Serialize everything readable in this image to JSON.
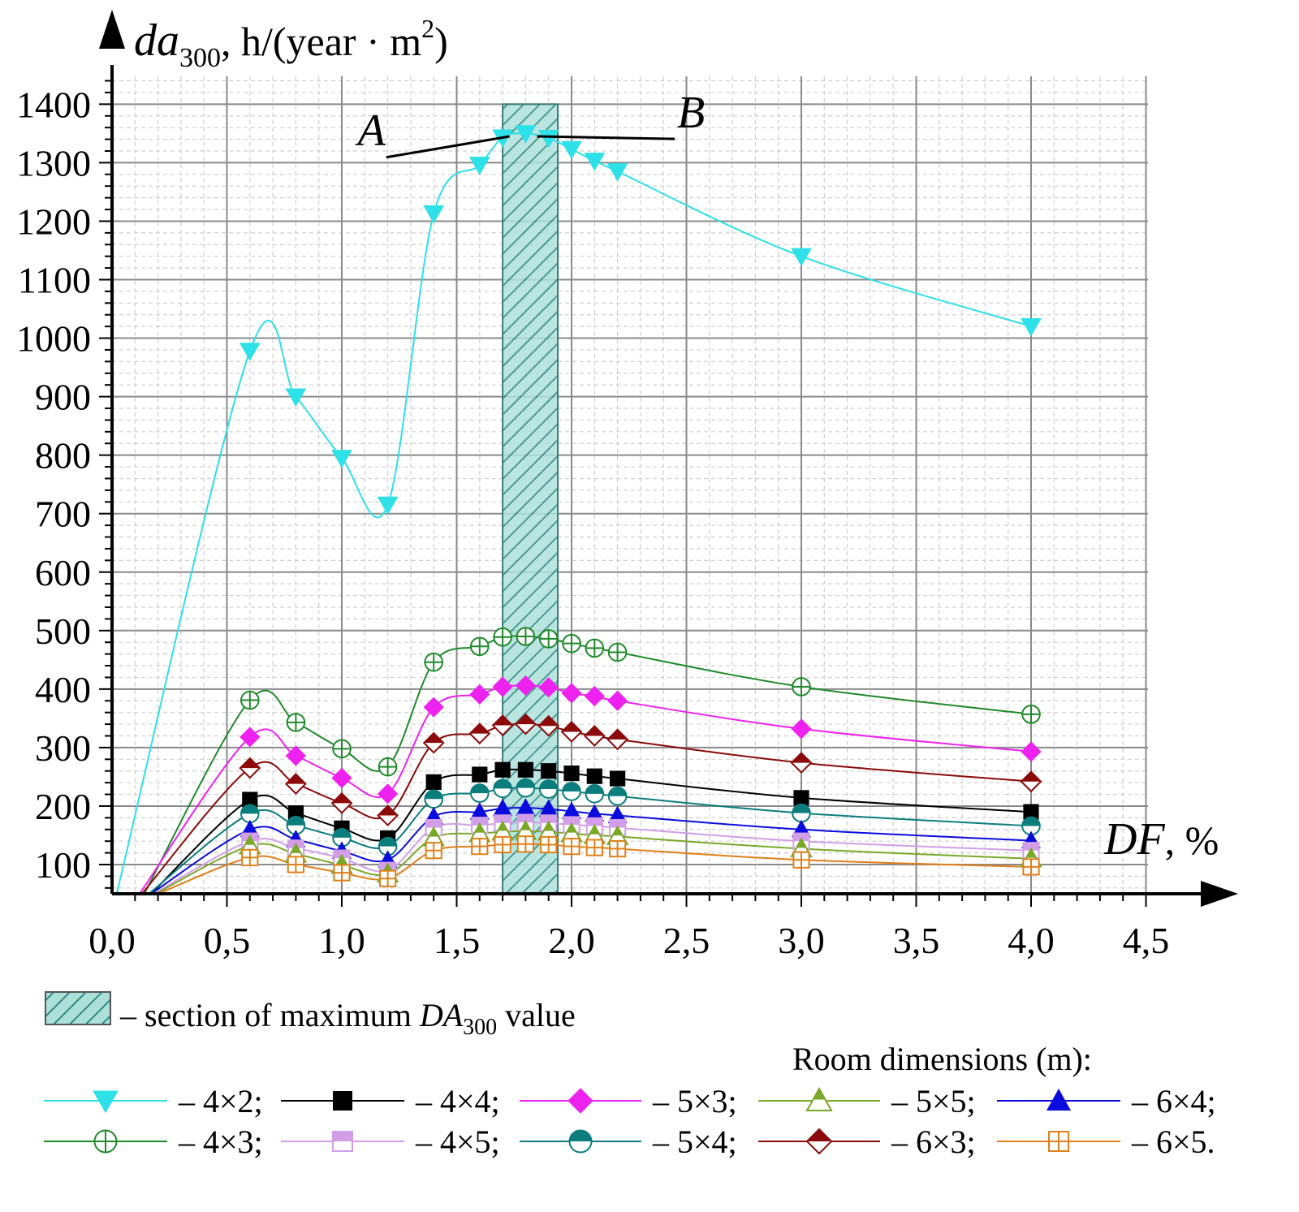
{
  "chart_data": {
    "type": "line",
    "title": "",
    "xlabel": "DF, %",
    "ylabel": "da300, h/(year·m2)",
    "xlabel_parts": {
      "var": "DF",
      "rest": ", %"
    },
    "ylabel_parts": {
      "var": "da",
      "sub": "300",
      "rest": ", h/(year · m",
      "sup": "2",
      "close": ")"
    },
    "xlim": [
      0.0,
      4.5
    ],
    "ylim": [
      50,
      1450
    ],
    "x_ticks": [
      0.0,
      0.5,
      1.0,
      1.5,
      2.0,
      2.5,
      3.0,
      3.5,
      4.0,
      4.5
    ],
    "x_tick_labels": [
      "0,0",
      "0,5",
      "1,0",
      "1,5",
      "2,0",
      "2,5",
      "3,0",
      "3,5",
      "4,0",
      "4,5"
    ],
    "y_ticks": [
      100,
      200,
      300,
      400,
      500,
      600,
      700,
      800,
      900,
      1000,
      1100,
      1200,
      1300,
      1400
    ],
    "y_tick_labels": [
      "100",
      "200",
      "300",
      "400",
      "500",
      "600",
      "700",
      "800",
      "900",
      "1000",
      "1100",
      "1200",
      "1300",
      "1400"
    ],
    "grid": true,
    "x": [
      0.6,
      0.8,
      1.0,
      1.2,
      1.4,
      1.6,
      1.7,
      1.8,
      1.9,
      2.0,
      2.1,
      2.2,
      3.0,
      4.0
    ],
    "highlight_band": {
      "x_from": 1.7,
      "x_to": 1.94,
      "y_to": 1400,
      "color": "#5fb8b0"
    },
    "annotations": [
      {
        "text": "A",
        "x": 1.13,
        "y": 1330,
        "points_to_x": 1.73,
        "points_to_y": 1345
      },
      {
        "text": "B",
        "x": 2.52,
        "y": 1360,
        "points_to_x": 1.85,
        "points_to_y": 1345
      }
    ],
    "series": [
      {
        "name": "4×2",
        "color": "#2ee0e8",
        "marker": "triangle-down",
        "curve_start": [
          0.02,
          50
        ],
        "values": [
          978,
          900,
          795,
          715,
          1213,
          1296,
          1343,
          1350,
          1342,
          1323,
          1303,
          1285,
          1140,
          1020
        ]
      },
      {
        "name": "4×3",
        "color": "#1f8a2a",
        "marker": "circle-plus",
        "curve_start": [
          0.14,
          50
        ],
        "values": [
          381,
          343,
          298,
          267,
          446,
          473,
          489,
          490,
          486,
          478,
          470,
          463,
          404,
          357
        ]
      },
      {
        "name": "4×4",
        "color": "#000000",
        "marker": "square-filled",
        "curve_start": [
          0.17,
          50
        ],
        "values": [
          211,
          188,
          162,
          145,
          241,
          254,
          262,
          262,
          260,
          256,
          251,
          247,
          214,
          190
        ]
      },
      {
        "name": "4×5",
        "color": "#d39ee8",
        "marker": "square-half",
        "curve_start": [
          0.18,
          50
        ],
        "values": [
          140,
          128,
          111,
          90,
          163,
          167,
          171,
          172,
          171,
          168,
          166,
          163,
          140,
          124
        ]
      },
      {
        "name": "5×3",
        "color": "#ee22ee",
        "marker": "diamond-filled",
        "curve_start": [
          0.12,
          50
        ],
        "values": [
          318,
          286,
          248,
          221,
          369,
          391,
          404,
          406,
          403,
          393,
          388,
          380,
          332,
          293
        ]
      },
      {
        "name": "5×4",
        "color": "#0b7d7d",
        "marker": "circle-half",
        "curve_start": [
          0.16,
          50
        ],
        "values": [
          187,
          167,
          146,
          131,
          212,
          222,
          230,
          231,
          229,
          225,
          221,
          217,
          188,
          166
        ]
      },
      {
        "name": "5×5",
        "color": "#7aa828",
        "marker": "triangle-up-half",
        "curve_start": [
          0.19,
          50
        ],
        "values": [
          132,
          118,
          99,
          84,
          146,
          153,
          156,
          157,
          156,
          153,
          150,
          148,
          127,
          110
        ]
      },
      {
        "name": "6×3",
        "color": "#8b0a0a",
        "marker": "diamond-half",
        "curve_start": [
          0.13,
          50
        ],
        "values": [
          265,
          238,
          205,
          184,
          308,
          324,
          338,
          340,
          337,
          327,
          320,
          314,
          274,
          242
        ]
      },
      {
        "name": "6×4",
        "color": "#0b0bdd",
        "marker": "triangle-up-filled",
        "curve_start": [
          0.17,
          50
        ],
        "values": [
          160,
          143,
          123,
          108,
          182,
          190,
          196,
          197,
          195,
          191,
          187,
          184,
          160,
          141
        ]
      },
      {
        "name": "6×5",
        "color": "#e0801a",
        "marker": "square-plus",
        "curve_start": [
          0.2,
          50
        ],
        "values": [
          112,
          100,
          86,
          76,
          124,
          131,
          134,
          135,
          134,
          131,
          129,
          127,
          108,
          96
        ]
      }
    ]
  },
  "legend": {
    "band_text_pre": "– section of maximum ",
    "band_text_var": "DA",
    "band_text_sub": "300",
    "band_text_post": " value",
    "room_title": "Room dimensions (m):",
    "entries": [
      {
        "series": 0,
        "label": "– 4×2;"
      },
      {
        "series": 2,
        "label": "– 4×4;"
      },
      {
        "series": 4,
        "label": "– 5×3;"
      },
      {
        "series": 6,
        "label": "– 5×5;"
      },
      {
        "series": 8,
        "label": "– 6×4;"
      },
      {
        "series": 1,
        "label": "– 4×3;"
      },
      {
        "series": 3,
        "label": "– 4×5;"
      },
      {
        "series": 5,
        "label": "– 5×4;"
      },
      {
        "series": 7,
        "label": "– 6×3;"
      },
      {
        "series": 9,
        "label": "– 6×5."
      }
    ]
  }
}
